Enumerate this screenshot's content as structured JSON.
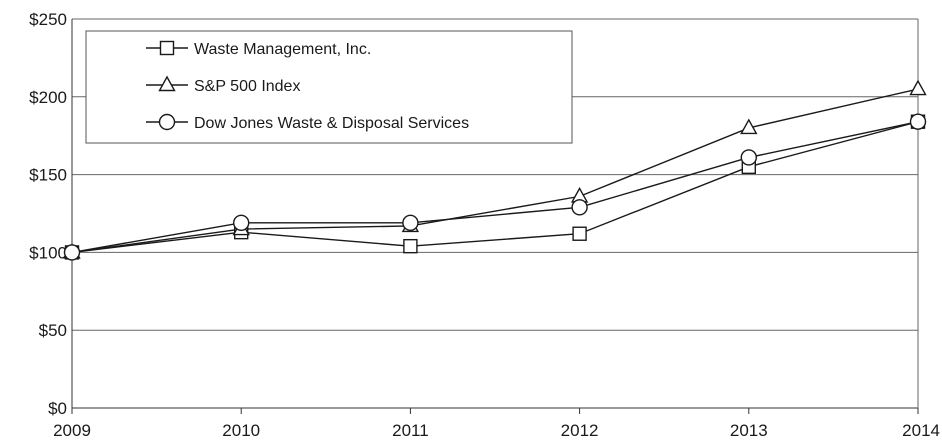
{
  "chart_data": {
    "type": "line",
    "title": "",
    "xlabel": "",
    "ylabel": "",
    "x": [
      "2009",
      "2010",
      "2011",
      "2012",
      "2013",
      "2014"
    ],
    "ylim": [
      0,
      250
    ],
    "y_ticks": [
      0,
      50,
      100,
      150,
      200,
      250
    ],
    "y_tick_labels": [
      "$0",
      "$50",
      "$100",
      "$150",
      "$200",
      "$250"
    ],
    "grid": true,
    "legend_position": "top-left",
    "line_color": "#1a1a1a",
    "series": [
      {
        "name": "Waste Management, Inc.",
        "marker": "square",
        "values": [
          100,
          113,
          104,
          112,
          155,
          184
        ]
      },
      {
        "name": "S&P 500 Index",
        "marker": "triangle",
        "values": [
          100,
          115,
          117,
          136,
          180,
          205
        ]
      },
      {
        "name": "Dow Jones Waste & Disposal Services",
        "marker": "circle",
        "values": [
          100,
          119,
          119,
          129,
          161,
          184
        ]
      }
    ]
  }
}
